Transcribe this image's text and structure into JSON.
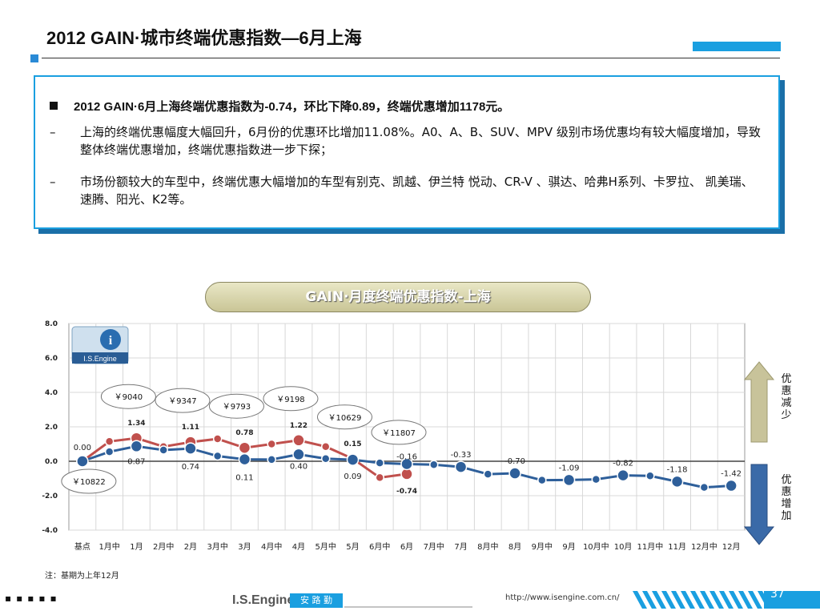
{
  "header": {
    "title": "2012 GAIN·城市终端优惠指数—6月上海"
  },
  "summary": {
    "main": "2012 GAIN·6月上海终端优惠指数为-0.74，环比下降0.89，终端优惠增加1178元。",
    "sub1_dash": "–",
    "sub1": "上海的终端优惠幅度大幅回升，6月份的优惠环比增加11.08%。A0、A、B、SUV、MPV 级别市场优惠均有较大幅度增加，导致整体终端优惠增加，终端优惠指数进一步下探；",
    "sub2_dash": "–",
    "sub2": "市场份额较大的车型中，终端优惠大幅增加的车型有别克、凯越、伊兰特 悦动、CR-V 、骐达、哈弗H系列、卡罗拉、 凯美瑞、速腾、阳光、K2等。"
  },
  "chart_title": "GAIN·月度终端优惠指数-上海",
  "logo_text": "I.S.Engine",
  "side_labels": {
    "up": "优惠减少",
    "down": "优惠增加"
  },
  "note": "注：基期为上年12月",
  "footer": {
    "dots": "▪▪▪▪▪",
    "logo": "I.S.Engine",
    "cn": "安 路 勤",
    "url": "http://www.isengine.com.cn/",
    "page": "37"
  },
  "colors": {
    "red": "#c0504d",
    "blue": "#2e5f9a",
    "accent": "#1a9fe0"
  },
  "chart_data": {
    "type": "line",
    "ylim": [
      -4,
      8
    ],
    "yticks": [
      "8.0",
      "6.0",
      "4.0",
      "2.0",
      "0.0",
      "-2.0",
      "-4.0"
    ],
    "grid": true,
    "categories": [
      "基点",
      "1月中",
      "1月",
      "2月中",
      "2月",
      "3月中",
      "3月",
      "4月中",
      "4月",
      "5月中",
      "5月",
      "6月中",
      "6月",
      "7月中",
      "7月",
      "8月中",
      "8月",
      "9月中",
      "9月",
      "10月中",
      "10月",
      "11月中",
      "11月",
      "12月中",
      "12月"
    ],
    "series": [
      {
        "color": "red",
        "values": [
          0.0,
          1.15,
          1.34,
          0.85,
          1.11,
          1.3,
          0.78,
          1.0,
          1.22,
          0.85,
          0.15,
          -0.95,
          -0.74,
          null,
          null,
          null,
          null,
          null,
          null,
          null,
          null,
          null,
          null,
          null,
          null
        ]
      },
      {
        "color": "blue",
        "values": [
          0.0,
          0.55,
          0.87,
          0.65,
          0.74,
          0.3,
          0.11,
          0.1,
          0.4,
          0.15,
          0.09,
          -0.1,
          -0.16,
          -0.2,
          -0.33,
          -0.75,
          -0.7,
          -1.1,
          -1.09,
          -1.05,
          -0.82,
          -0.85,
          -1.18,
          -1.52,
          -1.42
        ]
      }
    ],
    "point_labels": [
      {
        "i": 0,
        "s": "red",
        "text": "0.00",
        "dy": -14,
        "bold": false
      },
      {
        "i": 2,
        "s": "red",
        "text": "1.34",
        "dy": -16,
        "bold": true
      },
      {
        "i": 2,
        "s": "blue",
        "text": "0.87",
        "dy": 22,
        "bold": false
      },
      {
        "i": 4,
        "s": "red",
        "text": "1.11",
        "dy": -16,
        "bold": true
      },
      {
        "i": 4,
        "s": "blue",
        "text": "0.74",
        "dy": 26,
        "bold": false
      },
      {
        "i": 6,
        "s": "red",
        "text": "0.78",
        "dy": -16,
        "bold": true
      },
      {
        "i": 6,
        "s": "blue",
        "text": "0.11",
        "dy": 26,
        "bold": false
      },
      {
        "i": 8,
        "s": "red",
        "text": "1.22",
        "dy": -16,
        "bold": true
      },
      {
        "i": 8,
        "s": "blue",
        "text": "0.40",
        "dy": 18,
        "bold": false
      },
      {
        "i": 10,
        "s": "red",
        "text": "0.15",
        "dy": -16,
        "bold": true
      },
      {
        "i": 10,
        "s": "blue",
        "text": "0.09",
        "dy": 24,
        "bold": false
      },
      {
        "i": 12,
        "s": "blue",
        "text": "-0.16",
        "dy": -6,
        "bold": false
      },
      {
        "i": 12,
        "s": "red",
        "text": "-0.74",
        "dy": 24,
        "bold": true
      },
      {
        "i": 14,
        "s": "blue",
        "text": "-0.33",
        "dy": -12,
        "bold": false
      },
      {
        "i": 16,
        "s": "blue",
        "text": "-0.70",
        "dy": -12,
        "bold": false
      },
      {
        "i": 18,
        "s": "blue",
        "text": "-1.09",
        "dy": -12,
        "bold": false
      },
      {
        "i": 20,
        "s": "blue",
        "text": "-0.82",
        "dy": -12,
        "bold": false
      },
      {
        "i": 22,
        "s": "blue",
        "text": "-1.18",
        "dy": -12,
        "bold": false
      },
      {
        "i": 24,
        "s": "blue",
        "text": "-1.42",
        "dy": -12,
        "bold": false
      }
    ],
    "price_labels": [
      {
        "i": 2,
        "text": "￥9040",
        "pos": "above"
      },
      {
        "i": 4,
        "text": "￥9347",
        "pos": "above"
      },
      {
        "i": 6,
        "text": "￥9793",
        "pos": "above"
      },
      {
        "i": 8,
        "text": "￥9198",
        "pos": "above"
      },
      {
        "i": 10,
        "text": "￥10629",
        "pos": "above"
      },
      {
        "i": 12,
        "text": "￥11807",
        "pos": "above"
      },
      {
        "i": 0,
        "text": "￥10822",
        "pos": "below"
      }
    ]
  }
}
